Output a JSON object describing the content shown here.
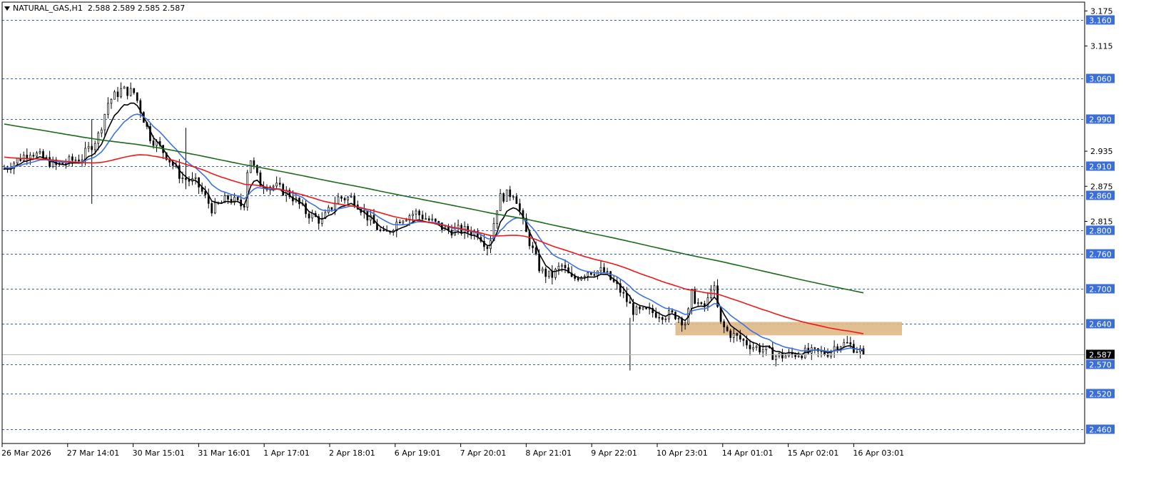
{
  "header": {
    "symbol": "NATURAL_GAS,H1",
    "ohlc": "2.588 2.589 2.585 2.587"
  },
  "colors": {
    "background": "#ffffff",
    "candle": "#000000",
    "level_line": "#3b5bc8",
    "level_tag_bg": "#3b6fd8",
    "ma_fast": "#000000",
    "ma_mid": "#3c72e0",
    "ma_red": "#f01818",
    "ma_green": "#1a6b1a",
    "zone": "#deb887",
    "current_tag_bg": "#000000"
  },
  "chart_data": {
    "type": "candlestick",
    "instrument": "NATURAL_GAS",
    "timeframe": "H1",
    "ylim": [
      2.435,
      3.19
    ],
    "y_ticks": [
      "3.175",
      "3.115",
      "2.935",
      "2.875",
      "2.815"
    ],
    "x_labels": [
      "26 Mar 2026",
      "27 Mar 14:01",
      "30 Mar 15:01",
      "31 Mar 16:01",
      "1 Apr 17:01",
      "2 Apr 18:01",
      "6 Apr 19:01",
      "7 Apr 20:01",
      "8 Apr 21:01",
      "9 Apr 22:01",
      "10 Apr 23:01",
      "14 Apr 01:01",
      "15 Apr 02:01",
      "16 Apr 03:01"
    ],
    "horizontal_levels": [
      "3.160",
      "3.060",
      "2.990",
      "2.910",
      "2.860",
      "2.800",
      "2.760",
      "2.700",
      "2.640",
      "2.570",
      "2.520",
      "2.460"
    ],
    "current_price": "2.587",
    "last_bar": {
      "open": 2.588,
      "high": 2.589,
      "low": 2.585,
      "close": 2.587
    },
    "zone": {
      "low": 2.62,
      "high": 2.643
    },
    "moving_averages": [
      {
        "color": "black",
        "start": 2.905,
        "end": 2.587
      },
      {
        "color": "blue",
        "start": 2.925,
        "end": 2.59
      },
      {
        "color": "red",
        "start": 2.945,
        "end": 2.633
      },
      {
        "color": "green",
        "start": 2.995,
        "end": 2.697
      }
    ],
    "grid": false,
    "legend": "none"
  }
}
